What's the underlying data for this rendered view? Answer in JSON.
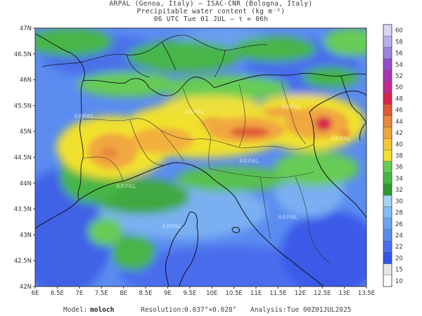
{
  "header": {
    "line1": "ARPAL (Genoa, Italy)  —  ISAC-CNR (Bologna, Italy)",
    "line2": "Precipitable water content (kg m⁻²)",
    "line3": "06 UTC Tue 01 JUL  –  τ = 06h"
  },
  "map": {
    "variable": "Precipitable water content",
    "units": "kg m-2",
    "lon_range": [
      6,
      13.5
    ],
    "lat_range": [
      42,
      47
    ],
    "lon_ticks": [
      "6E",
      "6.5E",
      "7E",
      "7.5E",
      "8E",
      "8.5E",
      "9E",
      "9.5E",
      "10E",
      "10.5E",
      "11E",
      "11.5E",
      "12E",
      "12.5E",
      "13E",
      "13.5E"
    ],
    "lat_ticks": [
      "42N",
      "42.5N",
      "43N",
      "43.5N",
      "44N",
      "44.5N",
      "45N",
      "45.5N",
      "46N",
      "46.5N",
      "47N"
    ],
    "watermark": [
      "ARPAL",
      "ARPAL",
      "ARPAL",
      "ARPAL",
      "ARPAL",
      "ARPAL",
      "ARPAL",
      "ARPAL"
    ]
  },
  "colorbar": {
    "levels": [
      "10",
      "15",
      "20",
      "22",
      "24",
      "26",
      "28",
      "30",
      "32",
      "34",
      "36",
      "38",
      "40",
      "42",
      "44",
      "46",
      "48",
      "50",
      "52",
      "54",
      "56",
      "58",
      "60"
    ],
    "colors": [
      "#ffffff",
      "#e6e6e6",
      "#3355e6",
      "#4770ee",
      "#5a8cf0",
      "#6ea5f2",
      "#86bdf3",
      "#a6d5f4",
      "#2f9a2f",
      "#46b546",
      "#66cc55",
      "#f0e12e",
      "#f5c83a",
      "#f0a740",
      "#e8873c",
      "#e05835",
      "#d8254f",
      "#c42a8f",
      "#a833b3",
      "#8f4fcc",
      "#9a86de",
      "#b8b0ea",
      "#d8d5f4"
    ]
  },
  "footer": {
    "model_label": "Model:",
    "model_value": "moloch",
    "resolution_label": "Resolution:",
    "resolution_value": "0.037°×0.028°",
    "analysis_label": "Analysis:",
    "analysis_value": "Tue 00Z01JUL2025"
  }
}
